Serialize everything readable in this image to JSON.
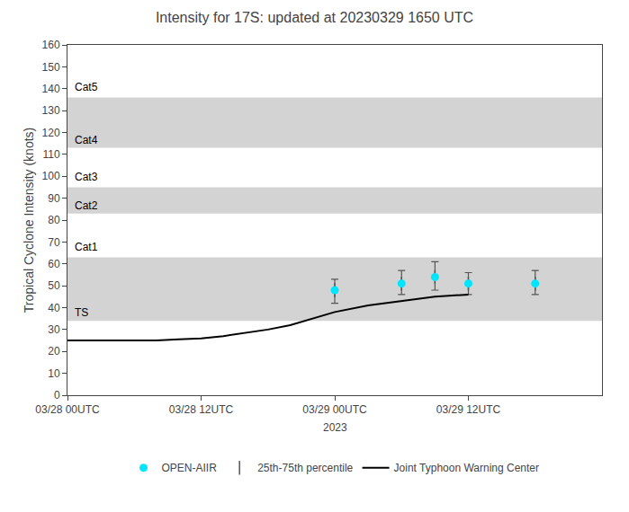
{
  "chart_data": {
    "type": "line",
    "title": "Intensity for 17S: updated at 20230329 1650 UTC",
    "y_label": "Tropical Cyclone Intensity (knots)",
    "x_label": "2023",
    "xlim": [
      0,
      48
    ],
    "xticks": [
      {
        "value": 0,
        "label": "03/28 00UTC"
      },
      {
        "value": 12,
        "label": "03/28 12UTC"
      },
      {
        "value": 24,
        "label": "03/29 00UTC"
      },
      {
        "value": 36,
        "label": "03/29 12UTC"
      }
    ],
    "ylim": [
      0,
      160
    ],
    "yticks": [
      0,
      10,
      20,
      30,
      40,
      50,
      60,
      70,
      80,
      90,
      100,
      110,
      120,
      130,
      140,
      150,
      160
    ],
    "grid": false,
    "bands": [
      {
        "label": "TS",
        "ymin": 34,
        "ymax": 63,
        "color": "#d3d3d3"
      },
      {
        "label": "Cat1",
        "ymin": 64,
        "ymax": 82
      },
      {
        "label": "Cat2",
        "ymin": 83,
        "ymax": 95,
        "color": "#d3d3d3"
      },
      {
        "label": "Cat3",
        "ymin": 96,
        "ymax": 112
      },
      {
        "label": "Cat4",
        "ymin": 113,
        "ymax": 136,
        "color": "#d3d3d3"
      },
      {
        "label": "Cat5",
        "ymin": 137,
        "ymax": 160
      }
    ],
    "series": [
      {
        "name": "OPEN-AIIR",
        "type": "scatter",
        "marker": "circle",
        "color": "#00e5ff",
        "x": [
          24,
          30,
          33,
          36,
          42
        ],
        "values": [
          48,
          51,
          54,
          51,
          51
        ],
        "error_label": "25th-75th percentile",
        "error_color": "#555555",
        "error_low": [
          42,
          46,
          48,
          46,
          46
        ],
        "error_high": [
          53,
          57,
          61,
          56,
          57
        ]
      },
      {
        "name": "Joint Typhoon Warning Center",
        "type": "line",
        "line_style": "solid",
        "color": "#000000",
        "x": [
          0,
          2,
          4,
          6,
          8,
          10,
          12,
          14,
          16,
          18,
          20,
          22,
          24,
          27,
          30,
          33,
          36
        ],
        "values": [
          25,
          25,
          25,
          25,
          25,
          25.5,
          26,
          27,
          28.5,
          30,
          32,
          35,
          38,
          41,
          43,
          45,
          46
        ]
      }
    ]
  }
}
